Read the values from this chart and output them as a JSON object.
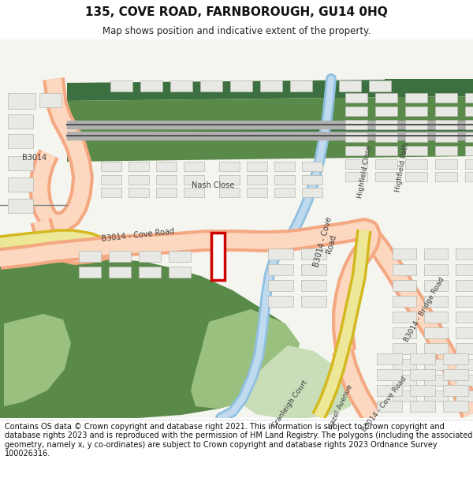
{
  "title": "135, COVE ROAD, FARNBOROUGH, GU14 0HQ",
  "subtitle": "Map shows position and indicative extent of the property.",
  "footer": "Contains OS data © Crown copyright and database right 2021. This information is subject to Crown copyright and database rights 2023 and is reproduced with the permission of HM Land Registry. The polygons (including the associated geometry, namely x, y co-ordinates) are subject to Crown copyright and database rights 2023 Ordnance Survey 100026316.",
  "title_fontsize": 11,
  "subtitle_fontsize": 8.5,
  "footer_fontsize": 7.0,
  "bg_white": "#ffffff",
  "map_bg": "#f5f5f0",
  "road_main": "#f4a882",
  "road_main_light": "#fcd8c0",
  "road_yellow": "#d4b820",
  "road_yellow_light": "#ece898",
  "railway_green_dark": "#3d7040",
  "railway_green_mid": "#5a8a4a",
  "green_dark": "#5a8a4a",
  "green_light": "#9ac080",
  "green_pale": "#c8ddb8",
  "water": "#90c0e0",
  "building_fill": "#e8e8e4",
  "building_edge": "#b8b8b0",
  "plot_outline": "#cc0000",
  "label_color": "#404040"
}
